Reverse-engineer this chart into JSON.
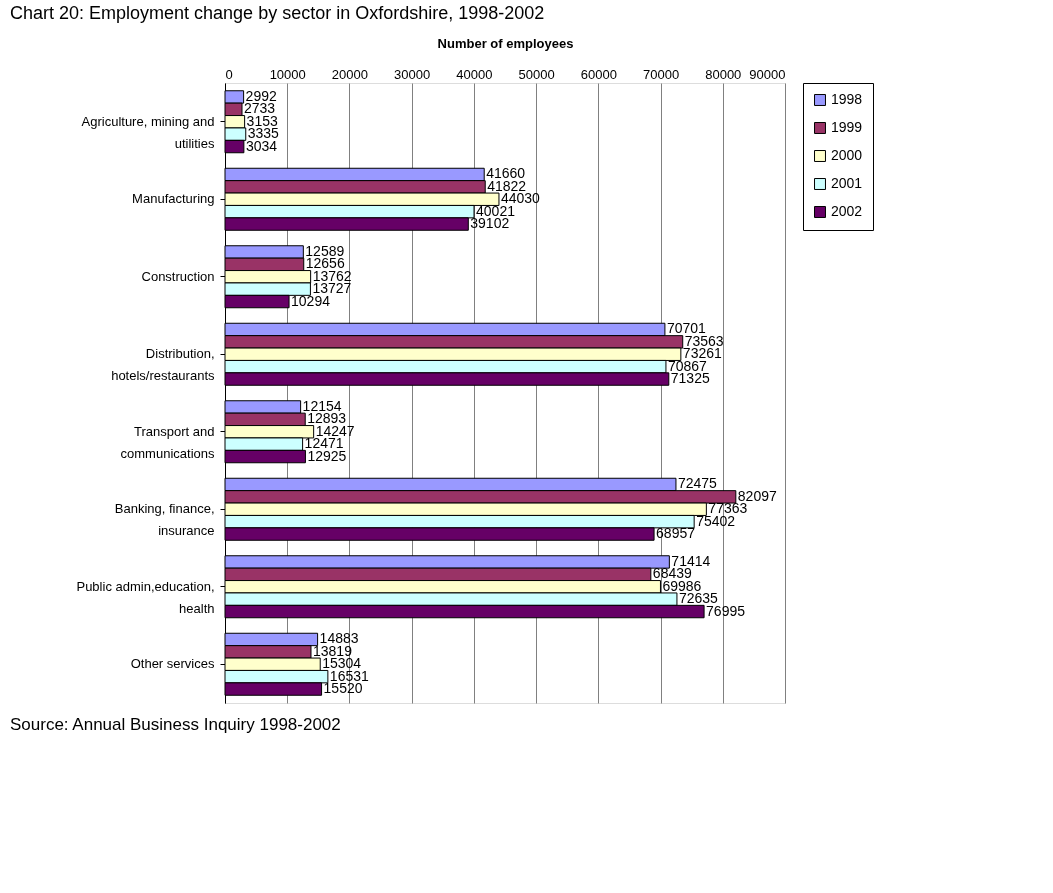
{
  "chart_data": {
    "type": "bar",
    "orientation": "horizontal",
    "title": "Chart 20: Employment change by sector in Oxfordshire, 1998-2002",
    "xlabel": "Number of employees",
    "categories": [
      "Agriculture, mining and utilities",
      "Manufacturing",
      "Construction",
      "Distribution, hotels/restaurants",
      "Transport and communications",
      "Banking, finance, insurance",
      "Public admin,education, health",
      "Other services"
    ],
    "series": [
      {
        "name": "1998",
        "color": "#9999ff",
        "values": [
          2992,
          41660,
          12589,
          70701,
          12154,
          72475,
          71414,
          14883
        ]
      },
      {
        "name": "1999",
        "color": "#993366",
        "values": [
          2733,
          41822,
          12656,
          73563,
          12893,
          82097,
          68439,
          13819
        ]
      },
      {
        "name": "2000",
        "color": "#ffffcc",
        "values": [
          3153,
          44030,
          13762,
          73261,
          14247,
          77363,
          69986,
          15304
        ]
      },
      {
        "name": "2001",
        "color": "#ccffff",
        "values": [
          3335,
          40021,
          13727,
          70867,
          12471,
          75402,
          72635,
          16531
        ]
      },
      {
        "name": "2002",
        "color": "#660066",
        "values": [
          3034,
          39102,
          10294,
          71325,
          12925,
          68957,
          76995,
          15520
        ]
      }
    ],
    "xlim": [
      0,
      90000
    ],
    "xticks": [
      0,
      10000,
      20000,
      30000,
      40000,
      50000,
      60000,
      70000,
      80000,
      90000
    ],
    "grid": "x",
    "legend": "right",
    "data_labels": true,
    "annotations": [
      "Source: Annual Business Inquiry 1998-2002"
    ]
  }
}
